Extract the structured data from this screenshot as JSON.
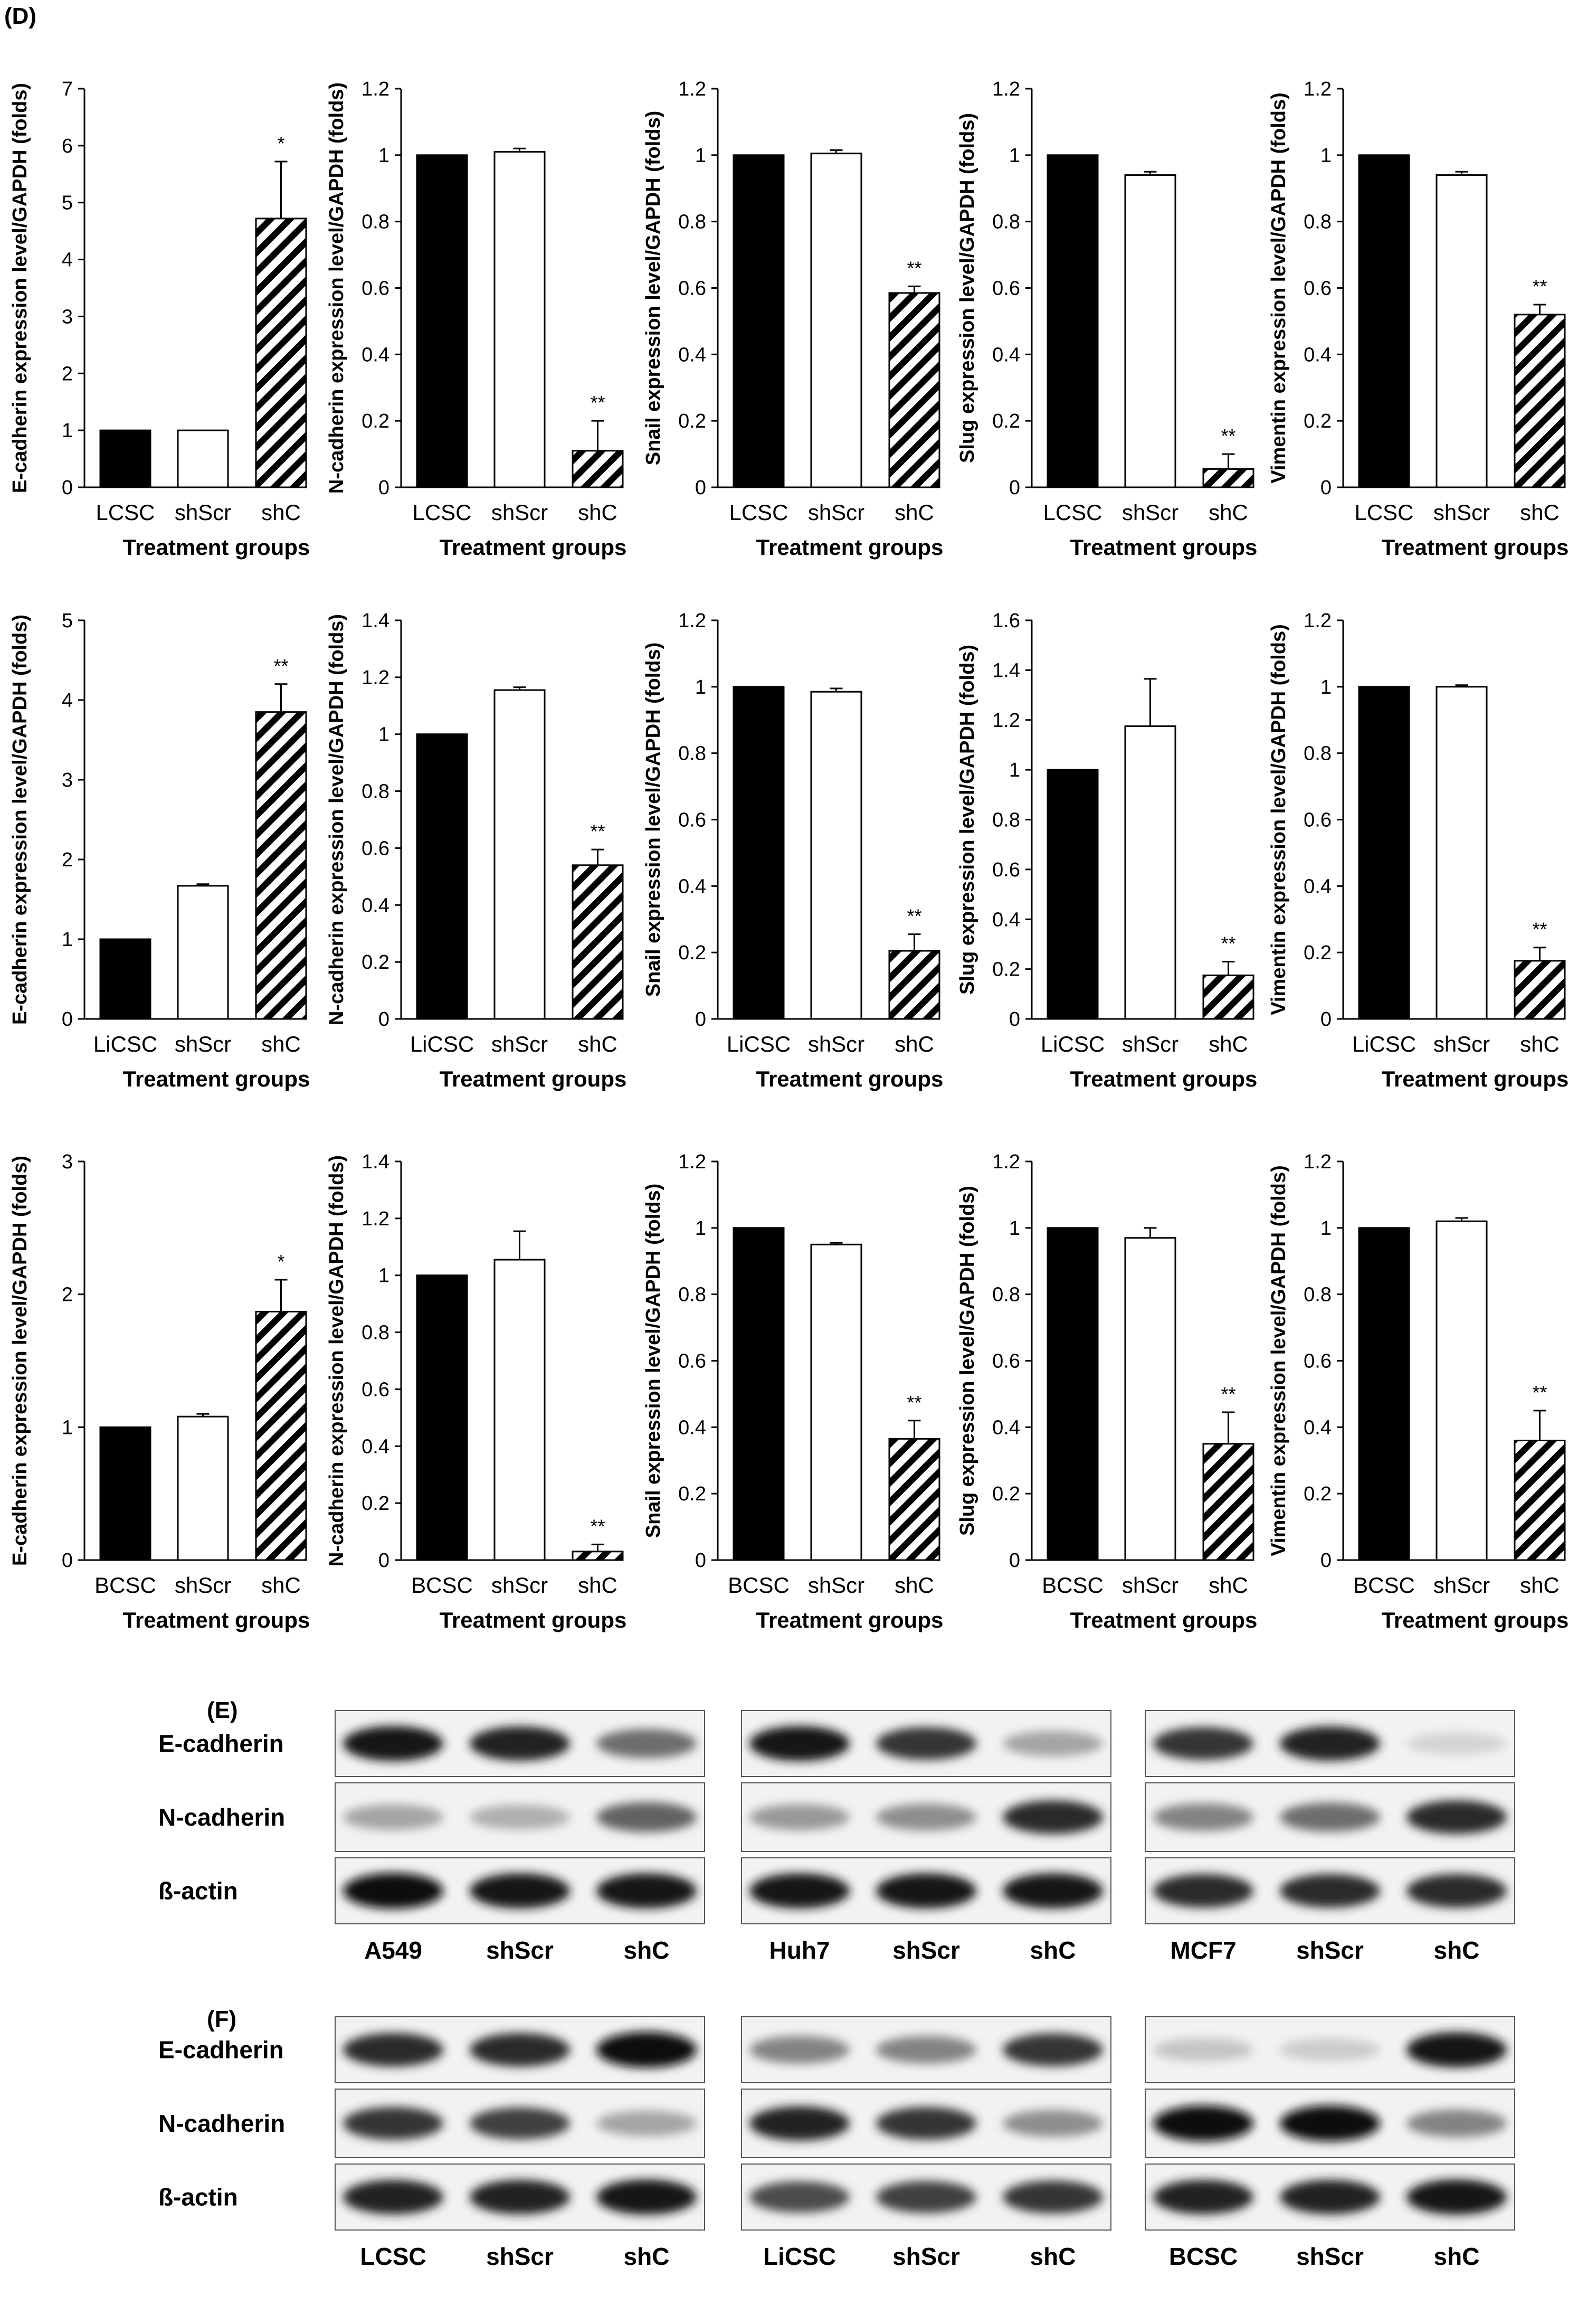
{
  "panels": {
    "d": "(D)",
    "e": "(E)",
    "f": "(F)"
  },
  "chart_common": {
    "type": "bar",
    "xlabel": "Treatment groups",
    "bar_styles": [
      "solid",
      "open",
      "hatched"
    ],
    "colors": {
      "solid": "#000000",
      "open": "#ffffff",
      "axis": "#000000"
    }
  },
  "chart_data": [
    {
      "type": "bar",
      "row": 0,
      "col": 0,
      "categories": [
        "LCSC",
        "shScr",
        "shC"
      ],
      "values": [
        1,
        1,
        4.72
      ],
      "errors": [
        0,
        0,
        1.0
      ],
      "significance": [
        "",
        "",
        "*"
      ],
      "ylabel": "E-cadherin expression level/GAPDH (folds)",
      "ylim": [
        0,
        7
      ],
      "yticks": [
        "0",
        "1",
        "2",
        "3",
        "4",
        "5",
        "6",
        "7"
      ],
      "xlabel": "Treatment groups"
    },
    {
      "type": "bar",
      "row": 0,
      "col": 1,
      "categories": [
        "LCSC",
        "shScr",
        "shC"
      ],
      "values": [
        1,
        1.01,
        0.11
      ],
      "errors": [
        0,
        0.01,
        0.09
      ],
      "significance": [
        "",
        "",
        "**"
      ],
      "ylabel": "N-cadherin expression level/GAPDH (folds)",
      "ylim": [
        0,
        1.2
      ],
      "yticks": [
        "0",
        "0.2",
        "0.4",
        "0.6",
        "0.8",
        "1",
        "1.2"
      ],
      "xlabel": "Treatment groups"
    },
    {
      "type": "bar",
      "row": 0,
      "col": 2,
      "categories": [
        "LCSC",
        "shScr",
        "shC"
      ],
      "values": [
        1,
        1.005,
        0.585
      ],
      "errors": [
        0,
        0.01,
        0.02
      ],
      "significance": [
        "",
        "",
        "**"
      ],
      "ylabel": "Snail expression level/GAPDH (folds)",
      "ylim": [
        0,
        1.2
      ],
      "yticks": [
        "0",
        "0.2",
        "0.4",
        "0.6",
        "0.8",
        "1",
        "1.2"
      ],
      "xlabel": "Treatment groups"
    },
    {
      "type": "bar",
      "row": 0,
      "col": 3,
      "categories": [
        "LCSC",
        "shScr",
        "shC"
      ],
      "values": [
        1,
        0.94,
        0.055
      ],
      "errors": [
        0,
        0.01,
        0.045
      ],
      "significance": [
        "",
        "",
        "**"
      ],
      "ylabel": "Slug expression level/GAPDH (folds)",
      "ylim": [
        0,
        1.2
      ],
      "yticks": [
        "0",
        "0.2",
        "0.4",
        "0.6",
        "0.8",
        "1",
        "1.2"
      ],
      "xlabel": "Treatment groups"
    },
    {
      "type": "bar",
      "row": 0,
      "col": 4,
      "categories": [
        "LCSC",
        "shScr",
        "shC"
      ],
      "values": [
        1,
        0.94,
        0.52
      ],
      "errors": [
        0,
        0.01,
        0.03
      ],
      "significance": [
        "",
        "",
        "**"
      ],
      "ylabel": "Vimentin expression level/GAPDH  (folds)",
      "ylim": [
        0,
        1.2
      ],
      "yticks": [
        "0",
        "0.2",
        "0.4",
        "0.6",
        "0.8",
        "1",
        "1.2"
      ],
      "xlabel": "Treatment groups"
    },
    {
      "type": "bar",
      "row": 1,
      "col": 0,
      "categories": [
        "LiCSC",
        "shScr",
        "shC"
      ],
      "values": [
        1,
        1.67,
        3.85
      ],
      "errors": [
        0,
        0.02,
        0.35
      ],
      "significance": [
        "",
        "",
        "**"
      ],
      "ylabel": "E-cadherin expression level/GAPDH (folds)",
      "ylim": [
        0,
        5
      ],
      "yticks": [
        "0",
        "1",
        "2",
        "3",
        "4",
        "5"
      ],
      "xlabel": "Treatment groups"
    },
    {
      "type": "bar",
      "row": 1,
      "col": 1,
      "categories": [
        "LiCSC",
        "shScr",
        "shC"
      ],
      "values": [
        1,
        1.155,
        0.54
      ],
      "errors": [
        0,
        0.01,
        0.055
      ],
      "significance": [
        "",
        "",
        "**"
      ],
      "ylabel": "N-cadherin expression level/GAPDH (folds)",
      "ylim": [
        0,
        1.4
      ],
      "yticks": [
        "0",
        "0.2",
        "0.4",
        "0.6",
        "0.8",
        "1",
        "1.2",
        "1.4"
      ],
      "xlabel": "Treatment groups"
    },
    {
      "type": "bar",
      "row": 1,
      "col": 2,
      "categories": [
        "LiCSC",
        "shScr",
        "shC"
      ],
      "values": [
        1,
        0.985,
        0.205
      ],
      "errors": [
        0,
        0.01,
        0.05
      ],
      "significance": [
        "",
        "",
        "**"
      ],
      "ylabel": "Snail expression level/GAPDH (folds)",
      "ylim": [
        0,
        1.2
      ],
      "yticks": [
        "0",
        "0.2",
        "0.4",
        "0.6",
        "0.8",
        "1",
        "1.2"
      ],
      "xlabel": "Treatment groups"
    },
    {
      "type": "bar",
      "row": 1,
      "col": 3,
      "categories": [
        "LiCSC",
        "shScr",
        "shC"
      ],
      "values": [
        1,
        1.175,
        0.175
      ],
      "errors": [
        0,
        0.19,
        0.055
      ],
      "significance": [
        "",
        "",
        "**"
      ],
      "ylabel": "Slug expression level/GAPDH (folds)",
      "ylim": [
        0,
        1.6
      ],
      "yticks": [
        "0",
        "0.2",
        "0.4",
        "0.6",
        "0.8",
        "1",
        "1.2",
        "1.4",
        "1.6"
      ],
      "xlabel": "Treatment groups"
    },
    {
      "type": "bar",
      "row": 1,
      "col": 4,
      "categories": [
        "LiCSC",
        "shScr",
        "shC"
      ],
      "values": [
        1,
        1.0,
        0.175
      ],
      "errors": [
        0,
        0.005,
        0.04
      ],
      "significance": [
        "",
        "",
        "**"
      ],
      "ylabel": "Vimentin expression level/GAPDH  (folds)",
      "ylim": [
        0,
        1.2
      ],
      "yticks": [
        "0",
        "0.2",
        "0.4",
        "0.6",
        "0.8",
        "1",
        "1.2"
      ],
      "xlabel": "Treatment groups"
    },
    {
      "type": "bar",
      "row": 2,
      "col": 0,
      "categories": [
        "BCSC",
        "shScr",
        "shC"
      ],
      "values": [
        1,
        1.08,
        1.87
      ],
      "errors": [
        0,
        0.02,
        0.24
      ],
      "significance": [
        "",
        "",
        "*"
      ],
      "ylabel": "E-cadherin expression level/GAPDH (folds)",
      "ylim": [
        0,
        3
      ],
      "yticks": [
        "0",
        "1",
        "2",
        "3"
      ],
      "xlabel": "Treatment groups"
    },
    {
      "type": "bar",
      "row": 2,
      "col": 1,
      "categories": [
        "BCSC",
        "shScr",
        "shC"
      ],
      "values": [
        1,
        1.055,
        0.03
      ],
      "errors": [
        0,
        0.1,
        0.025
      ],
      "significance": [
        "",
        "",
        "**"
      ],
      "ylabel": "N-cadherin expression level/GAPDH (folds)",
      "ylim": [
        0,
        1.4
      ],
      "yticks": [
        "0",
        "0.2",
        "0.4",
        "0.6",
        "0.8",
        "1",
        "1.2",
        "1.4"
      ],
      "xlabel": "Treatment groups"
    },
    {
      "type": "bar",
      "row": 2,
      "col": 2,
      "categories": [
        "BCSC",
        "shScr",
        "shC"
      ],
      "values": [
        1,
        0.95,
        0.365
      ],
      "errors": [
        0,
        0.005,
        0.055
      ],
      "significance": [
        "",
        "",
        "**"
      ],
      "ylabel": "Snail expression level/GAPDH  (folds)",
      "ylim": [
        0,
        1.2
      ],
      "yticks": [
        "0",
        "0.2",
        "0.4",
        "0.6",
        "0.8",
        "1",
        "1.2"
      ],
      "xlabel": "Treatment groups"
    },
    {
      "type": "bar",
      "row": 2,
      "col": 3,
      "categories": [
        "BCSC",
        "shScr",
        "shC"
      ],
      "values": [
        1,
        0.97,
        0.35
      ],
      "errors": [
        0,
        0.03,
        0.095
      ],
      "significance": [
        "",
        "",
        "**"
      ],
      "ylabel": "Slug expression level/GAPDH  (folds)",
      "ylim": [
        0,
        1.2
      ],
      "yticks": [
        "0",
        "0.2",
        "0.4",
        "0.6",
        "0.8",
        "1",
        "1.2"
      ],
      "xlabel": "Treatment groups"
    },
    {
      "type": "bar",
      "row": 2,
      "col": 4,
      "categories": [
        "BCSC",
        "shScr",
        "shC"
      ],
      "values": [
        1,
        1.02,
        0.36
      ],
      "errors": [
        0,
        0.01,
        0.09
      ],
      "significance": [
        "",
        "",
        "**"
      ],
      "ylabel": "Vimentin expression level/GAPDH  (folds)",
      "ylim": [
        0,
        1.2
      ],
      "yticks": [
        "0",
        "0.2",
        "0.4",
        "0.6",
        "0.8",
        "1",
        "1.2"
      ],
      "xlabel": "Treatment groups"
    }
  ],
  "blots": {
    "E": {
      "row_labels": [
        "E-cadherin",
        "N-cadherin",
        "ß-actin"
      ],
      "groups": [
        {
          "lanes": [
            "A549",
            "shScr",
            "shC"
          ],
          "bands": [
            [
              0.95,
              0.9,
              0.55
            ],
            [
              0.3,
              0.25,
              0.6
            ],
            [
              1.0,
              0.95,
              0.95
            ]
          ]
        },
        {
          "lanes": [
            "Huh7",
            "shScr",
            "shC"
          ],
          "bands": [
            [
              0.95,
              0.8,
              0.3
            ],
            [
              0.35,
              0.4,
              0.85
            ],
            [
              0.95,
              0.95,
              0.95
            ]
          ]
        },
        {
          "lanes": [
            "MCF7",
            "shScr",
            "shC"
          ],
          "bands": [
            [
              0.8,
              0.9,
              0.08
            ],
            [
              0.45,
              0.55,
              0.85
            ],
            [
              0.85,
              0.85,
              0.85
            ]
          ]
        }
      ]
    },
    "F": {
      "row_labels": [
        "E-cadherin",
        "N-cadherin",
        "ß-actin"
      ],
      "groups": [
        {
          "lanes": [
            "LCSC",
            "shScr",
            "shC"
          ],
          "bands": [
            [
              0.85,
              0.85,
              1.0
            ],
            [
              0.8,
              0.75,
              0.3
            ],
            [
              0.9,
              0.9,
              0.95
            ]
          ]
        },
        {
          "lanes": [
            "LiCSC",
            "shScr",
            "shC"
          ],
          "bands": [
            [
              0.45,
              0.45,
              0.8
            ],
            [
              0.9,
              0.8,
              0.4
            ],
            [
              0.7,
              0.75,
              0.8
            ]
          ]
        },
        {
          "lanes": [
            "BCSC",
            "shScr",
            "shC"
          ],
          "bands": [
            [
              0.15,
              0.12,
              0.95
            ],
            [
              1.0,
              1.0,
              0.45
            ],
            [
              0.9,
              0.9,
              0.95
            ]
          ]
        }
      ]
    }
  }
}
